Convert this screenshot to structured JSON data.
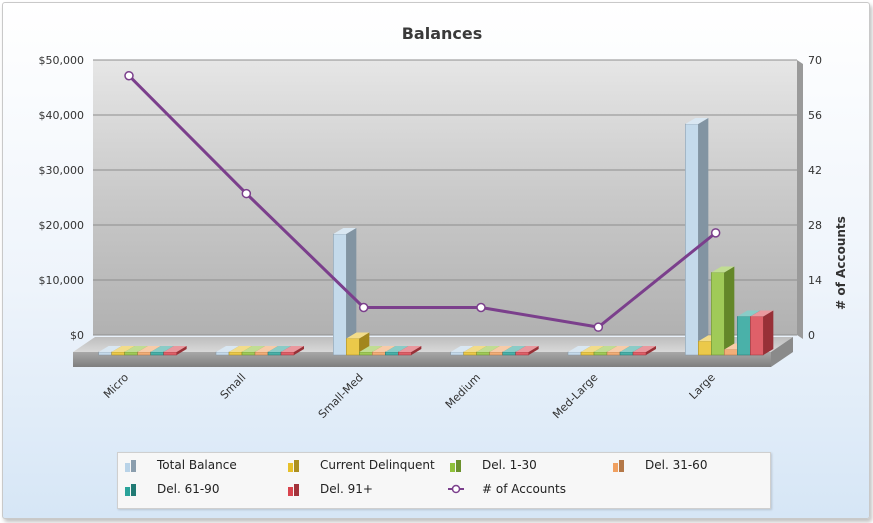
{
  "chart_data": {
    "type": "bar",
    "title": "Balances",
    "categories": [
      "Micro",
      "Small",
      "Small-Med",
      "Medium",
      "Med-Large",
      "Large"
    ],
    "y_left": {
      "ylim": [
        0,
        50000
      ],
      "ticks": [
        "$0",
        "$10,000",
        "$20,000",
        "$30,000",
        "$40,000",
        "$50,000"
      ]
    },
    "y_right": {
      "label": "# of Accounts",
      "ylim": [
        0,
        70
      ],
      "ticks": [
        "0",
        "14",
        "28",
        "42",
        "56",
        "70"
      ]
    },
    "series": [
      {
        "name": "Total Balance",
        "axis": "left",
        "kind": "bar",
        "color": "#b9d3e8",
        "values": [
          0,
          0,
          22000,
          0,
          0,
          42000
        ]
      },
      {
        "name": "Current Delinquent",
        "axis": "left",
        "kind": "bar",
        "color": "#e7c02a",
        "values": [
          0,
          0,
          3000,
          0,
          0,
          2500
        ]
      },
      {
        "name": "Del. 1-30",
        "axis": "left",
        "kind": "bar",
        "color": "#8fc13a",
        "values": [
          0,
          0,
          0,
          0,
          0,
          15000
        ]
      },
      {
        "name": "Del. 31-60",
        "axis": "left",
        "kind": "bar",
        "color": "#f0a060",
        "values": [
          0,
          0,
          0,
          0,
          0,
          1000
        ]
      },
      {
        "name": "Del. 61-90",
        "axis": "left",
        "kind": "bar",
        "color": "#2aa39a",
        "values": [
          0,
          0,
          0,
          0,
          0,
          7000
        ]
      },
      {
        "name": "Del. 91+",
        "axis": "left",
        "kind": "bar",
        "color": "#d9444e",
        "values": [
          0,
          0,
          0,
          0,
          0,
          7000
        ]
      },
      {
        "name": "# of Accounts",
        "axis": "right",
        "kind": "line",
        "color": "#7b3f8c",
        "values": [
          66,
          36,
          7,
          7,
          2,
          26
        ]
      }
    ],
    "grid": true,
    "legend_position": "bottom"
  },
  "legend": {
    "items": [
      {
        "label": "Total Balance",
        "color": "#b9d3e8",
        "icon": "bar-icon"
      },
      {
        "label": "Current Delinquent",
        "color": "#e7c02a",
        "icon": "bar-icon"
      },
      {
        "label": "Del. 1-30",
        "color": "#8fc13a",
        "icon": "bar-icon"
      },
      {
        "label": "Del. 31-60",
        "color": "#f0a060",
        "icon": "bar-icon"
      },
      {
        "label": "Del. 61-90",
        "color": "#2aa39a",
        "icon": "bar-icon"
      },
      {
        "label": "Del. 91+",
        "color": "#d9444e",
        "icon": "bar-icon"
      },
      {
        "label": "# of Accounts",
        "color": "#7b3f8c",
        "icon": "line-marker-icon"
      }
    ]
  }
}
